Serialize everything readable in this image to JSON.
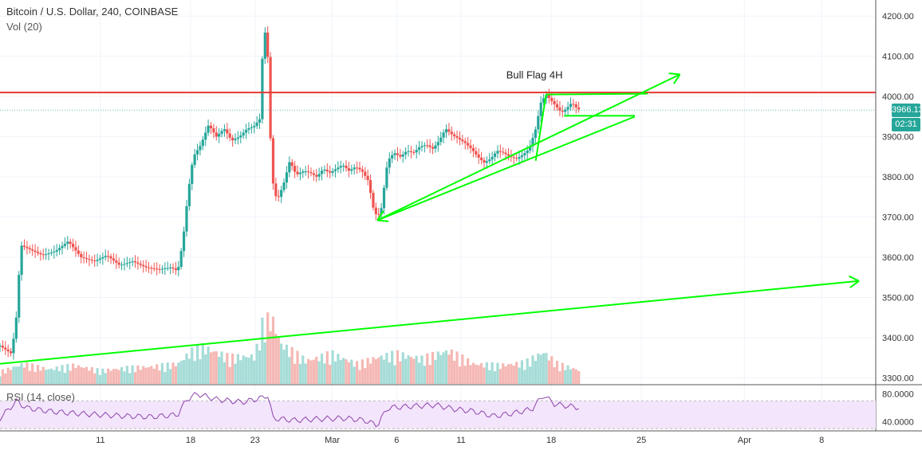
{
  "chart_data": {
    "type": "candlestick",
    "title": "Bitcoin / U.S. Dollar, 240, COINBASE",
    "volume_label": "Vol (20)",
    "rsi_label": "RSI (14, close)",
    "price_axis": {
      "ticks": [
        3300,
        3400,
        3500,
        3600,
        3700,
        3800,
        3900,
        4000,
        4100,
        4200
      ],
      "tick_labels": [
        "3300.00",
        "3400.00",
        "3500.00",
        "3600.00",
        "3700.00",
        "3800.00",
        "3900.00",
        "4000.00",
        "4100.00",
        "4200.00"
      ],
      "range": [
        3285,
        4240
      ]
    },
    "rsi_axis": {
      "ticks": [
        80,
        40
      ],
      "tick_labels": [
        "80.0000",
        "40.0000"
      ],
      "range": [
        28,
        92
      ],
      "band": [
        30,
        70
      ]
    },
    "x_axis": {
      "labels": [
        "11",
        "18",
        "23",
        "Mar",
        "6",
        "11",
        "18",
        "25",
        "Apr",
        "8"
      ],
      "label_day": [
        11,
        18,
        23,
        29,
        34,
        39,
        46,
        53,
        61,
        67
      ],
      "day_range": [
        3.2,
        71.2
      ]
    },
    "current_price": "3966.13",
    "countdown": "02:31",
    "resistance_level": 4010,
    "annotations": [
      {
        "text": "Bull Flag 4H",
        "day": 44.7,
        "price": 4045
      }
    ],
    "trendlines": [
      {
        "color": "#00ff00",
        "p1": [
          3.2,
          3335
        ],
        "p2": [
          69.9,
          3541
        ],
        "arrow": true
      },
      {
        "color": "#00ff00",
        "p1": [
          32.5,
          3692
        ],
        "p2": [
          56.0,
          4055
        ],
        "arrow": true
      },
      {
        "color": "#00ff00",
        "p1": [
          32.5,
          3692
        ],
        "p2": [
          52.5,
          3950
        ],
        "arrow": false
      },
      {
        "color": "#00ff00",
        "p1": [
          45.6,
          4005
        ],
        "p2": [
          53.5,
          4007
        ],
        "arrow": false
      },
      {
        "color": "#00ff00",
        "p1": [
          47.0,
          3952
        ],
        "p2": [
          52.5,
          3952
        ],
        "arrow": false
      },
      {
        "color": "#00ff00",
        "p1": [
          44.8,
          3840
        ],
        "p2": [
          45.6,
          4005
        ],
        "arrow": false
      }
    ],
    "price_path": [
      [
        3.2,
        3380
      ],
      [
        4.1,
        3360
      ],
      [
        4.5,
        3460
      ],
      [
        4.8,
        3630
      ],
      [
        5.5,
        3620
      ],
      [
        6.5,
        3605
      ],
      [
        7.5,
        3615
      ],
      [
        8.5,
        3640
      ],
      [
        9.5,
        3600
      ],
      [
        10.5,
        3590
      ],
      [
        11.5,
        3605
      ],
      [
        12.5,
        3580
      ],
      [
        13.5,
        3590
      ],
      [
        14.5,
        3575
      ],
      [
        15.5,
        3570
      ],
      [
        16.5,
        3575
      ],
      [
        17.0,
        3565
      ],
      [
        17.4,
        3640
      ],
      [
        17.8,
        3760
      ],
      [
        18.2,
        3850
      ],
      [
        18.8,
        3880
      ],
      [
        19.4,
        3930
      ],
      [
        20.0,
        3900
      ],
      [
        20.6,
        3920
      ],
      [
        21.2,
        3890
      ],
      [
        21.8,
        3900
      ],
      [
        22.4,
        3920
      ],
      [
        22.9,
        3925
      ],
      [
        23.4,
        3945
      ],
      [
        23.6,
        4120
      ],
      [
        23.9,
        4185
      ],
      [
        24.3,
        3800
      ],
      [
        24.7,
        3740
      ],
      [
        25.2,
        3780
      ],
      [
        25.7,
        3840
      ],
      [
        26.2,
        3805
      ],
      [
        26.8,
        3815
      ],
      [
        27.3,
        3810
      ],
      [
        27.8,
        3800
      ],
      [
        28.3,
        3820
      ],
      [
        28.8,
        3810
      ],
      [
        29.3,
        3820
      ],
      [
        29.8,
        3830
      ],
      [
        30.3,
        3815
      ],
      [
        30.8,
        3825
      ],
      [
        31.3,
        3815
      ],
      [
        31.8,
        3790
      ],
      [
        32.2,
        3720
      ],
      [
        32.5,
        3700
      ],
      [
        32.8,
        3720
      ],
      [
        33.3,
        3840
      ],
      [
        33.8,
        3860
      ],
      [
        34.3,
        3850
      ],
      [
        34.8,
        3865
      ],
      [
        35.3,
        3860
      ],
      [
        35.8,
        3875
      ],
      [
        36.3,
        3880
      ],
      [
        36.8,
        3870
      ],
      [
        37.3,
        3890
      ],
      [
        37.8,
        3920
      ],
      [
        38.3,
        3905
      ],
      [
        38.8,
        3895
      ],
      [
        39.3,
        3885
      ],
      [
        39.8,
        3870
      ],
      [
        40.3,
        3850
      ],
      [
        40.8,
        3835
      ],
      [
        41.3,
        3845
      ],
      [
        41.8,
        3865
      ],
      [
        42.3,
        3860
      ],
      [
        42.8,
        3850
      ],
      [
        43.3,
        3845
      ],
      [
        43.8,
        3855
      ],
      [
        44.3,
        3870
      ],
      [
        44.8,
        3920
      ],
      [
        45.2,
        3985
      ],
      [
        45.6,
        4005
      ],
      [
        46.0,
        3990
      ],
      [
        46.4,
        3975
      ],
      [
        46.8,
        3960
      ],
      [
        47.2,
        3970
      ],
      [
        47.6,
        3985
      ],
      [
        48.0,
        3970
      ],
      [
        48.3,
        3966
      ]
    ],
    "volume_scale_max": 100,
    "volume_path": [
      [
        3.2,
        18
      ],
      [
        5,
        30
      ],
      [
        7,
        22
      ],
      [
        9,
        28
      ],
      [
        11,
        20
      ],
      [
        13,
        24
      ],
      [
        15,
        26
      ],
      [
        17,
        30
      ],
      [
        18,
        48
      ],
      [
        19,
        55
      ],
      [
        21,
        40
      ],
      [
        23,
        42
      ],
      [
        23.6,
        90
      ],
      [
        24.3,
        100
      ],
      [
        25,
        60
      ],
      [
        27,
        35
      ],
      [
        29,
        45
      ],
      [
        31,
        30
      ],
      [
        32.5,
        40
      ],
      [
        34,
        45
      ],
      [
        36,
        38
      ],
      [
        38,
        50
      ],
      [
        40,
        30
      ],
      [
        42,
        28
      ],
      [
        44,
        32
      ],
      [
        45.4,
        48
      ],
      [
        46.5,
        30
      ],
      [
        48.3,
        20
      ]
    ],
    "rsi_path": [
      [
        3.2,
        45
      ],
      [
        4.5,
        70
      ],
      [
        5.2,
        60
      ],
      [
        7,
        55
      ],
      [
        9,
        52
      ],
      [
        11,
        50
      ],
      [
        13,
        48
      ],
      [
        15,
        47
      ],
      [
        17,
        50
      ],
      [
        17.7,
        72
      ],
      [
        18.5,
        80
      ],
      [
        20,
        72
      ],
      [
        22,
        68
      ],
      [
        23.5,
        74
      ],
      [
        24,
        78
      ],
      [
        24.4,
        45
      ],
      [
        26,
        42
      ],
      [
        28,
        44
      ],
      [
        30,
        45
      ],
      [
        31.5,
        42
      ],
      [
        32.5,
        35
      ],
      [
        33.3,
        60
      ],
      [
        35,
        62
      ],
      [
        37,
        64
      ],
      [
        38.5,
        58
      ],
      [
        40,
        55
      ],
      [
        41.5,
        48
      ],
      [
        43,
        52
      ],
      [
        44.5,
        58
      ],
      [
        45.4,
        78
      ],
      [
        46.3,
        65
      ],
      [
        47.5,
        62
      ],
      [
        48.3,
        60
      ]
    ]
  }
}
